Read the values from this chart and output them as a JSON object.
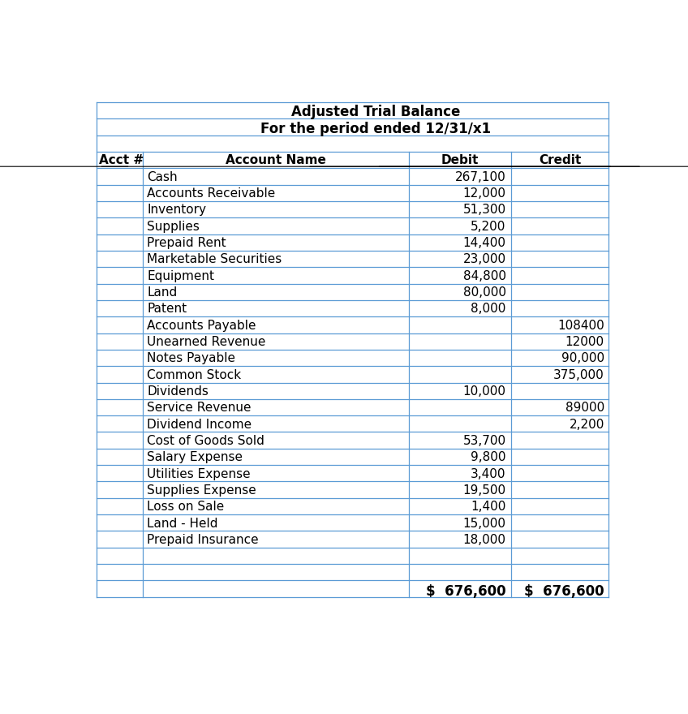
{
  "title_line1": "Adjusted Trial Balance",
  "title_line2": "For the period ended 12/31/x1",
  "headers": [
    "Acct #",
    "Account Name",
    "Debit",
    "Credit"
  ],
  "rows": [
    {
      "name": "Cash",
      "debit": "267,100",
      "credit": ""
    },
    {
      "name": "Accounts Receivable",
      "debit": "12,000",
      "credit": ""
    },
    {
      "name": "Inventory",
      "debit": "51,300",
      "credit": ""
    },
    {
      "name": "Supplies",
      "debit": "5,200",
      "credit": ""
    },
    {
      "name": "Prepaid Rent",
      "debit": "14,400",
      "credit": ""
    },
    {
      "name": "Marketable Securities",
      "debit": "23,000",
      "credit": ""
    },
    {
      "name": "Equipment",
      "debit": "84,800",
      "credit": ""
    },
    {
      "name": "Land",
      "debit": "80,000",
      "credit": ""
    },
    {
      "name": "Patent",
      "debit": "8,000",
      "credit": ""
    },
    {
      "name": "Accounts Payable",
      "debit": "",
      "credit": "108400"
    },
    {
      "name": "Unearned Revenue",
      "debit": "",
      "credit": "12000"
    },
    {
      "name": "Notes Payable",
      "debit": "",
      "credit": "90,000"
    },
    {
      "name": "Common Stock",
      "debit": "",
      "credit": "375,000"
    },
    {
      "name": "Dividends",
      "debit": "10,000",
      "credit": ""
    },
    {
      "name": "Service Revenue",
      "debit": "",
      "credit": "89000"
    },
    {
      "name": "Dividend Income",
      "debit": "",
      "credit": "2,200"
    },
    {
      "name": "Cost of Goods Sold",
      "debit": "53,700",
      "credit": ""
    },
    {
      "name": "Salary Expense",
      "debit": "9,800",
      "credit": ""
    },
    {
      "name": "Utilities Expense",
      "debit": "3,400",
      "credit": ""
    },
    {
      "name": "Supplies Expense",
      "debit": "19,500",
      "credit": ""
    },
    {
      "name": "Loss on Sale",
      "debit": "1,400",
      "credit": ""
    },
    {
      "name": "Land - Held",
      "debit": "15,000",
      "credit": ""
    },
    {
      "name": "Prepaid Insurance",
      "debit": "18,000",
      "credit": ""
    },
    {
      "name": "",
      "debit": "",
      "credit": ""
    },
    {
      "name": "",
      "debit": "",
      "credit": ""
    }
  ],
  "total_debit": "$  676,600",
  "total_credit": "$  676,600",
  "bg_color": "#ffffff",
  "grid_color": "#5b9bd5",
  "text_color": "#000000",
  "header_color": "#000000",
  "font_size": 11,
  "header_font_size": 11,
  "title_font_size": 12
}
